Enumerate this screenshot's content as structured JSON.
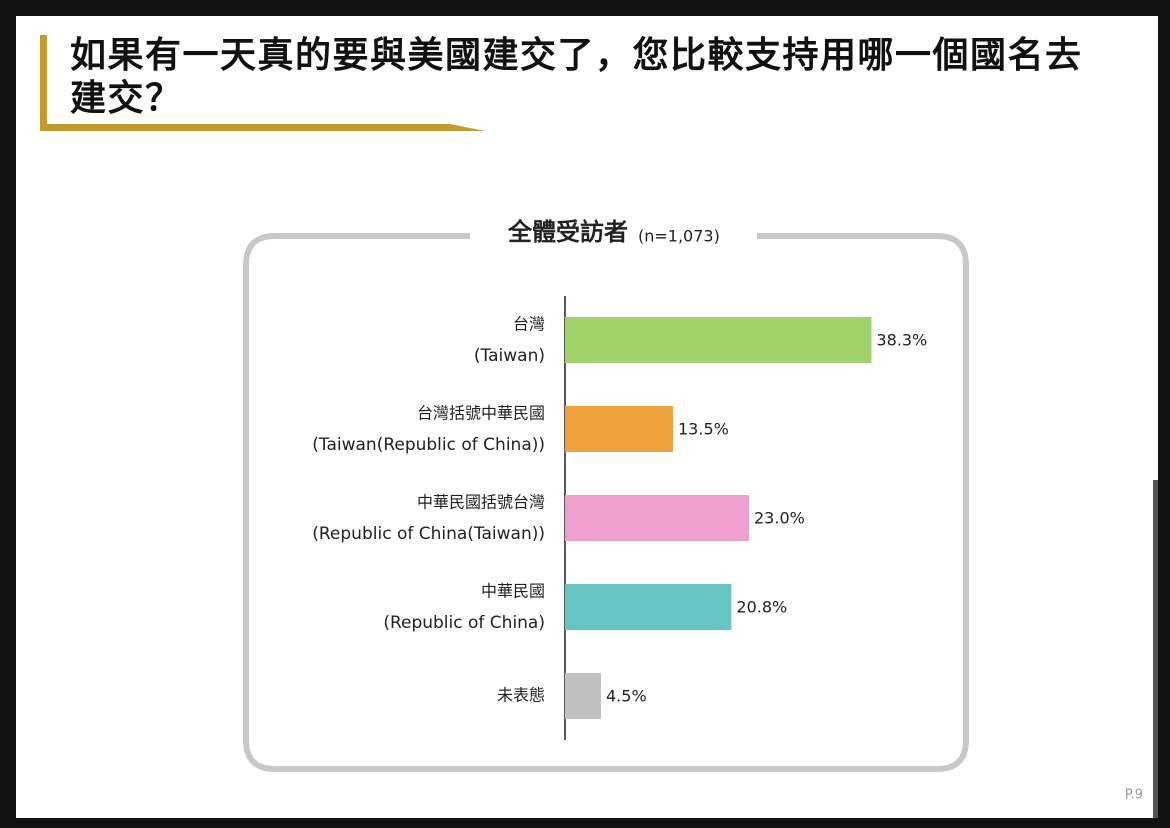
{
  "page_title": "如果有一天真的要與美國建交了，您比較支持用哪一個國名去建交？",
  "page_number": "P.9",
  "chart_data": {
    "type": "bar",
    "orientation": "horizontal",
    "title": "全體受訪者",
    "subtitle": "(n=1,073)",
    "categories": [
      "台灣",
      "台灣括號中華民國",
      "中華民國括號台灣",
      "中華民國",
      "未表態"
    ],
    "categories_en": [
      "(Taiwan)",
      "(Taiwan(Republic of China))",
      "(Republic of China(Taiwan))",
      "(Republic of China)",
      null
    ],
    "values": [
      38.3,
      13.5,
      23.0,
      20.8,
      4.5
    ],
    "value_labels": [
      "38.3%",
      "13.5%",
      "23.0%",
      "20.8%",
      "4.5%"
    ],
    "colors": [
      "#a0d16a",
      "#f0a03c",
      "#f0a0cc",
      "#66c5c2",
      "#c0c0c0"
    ]
  }
}
